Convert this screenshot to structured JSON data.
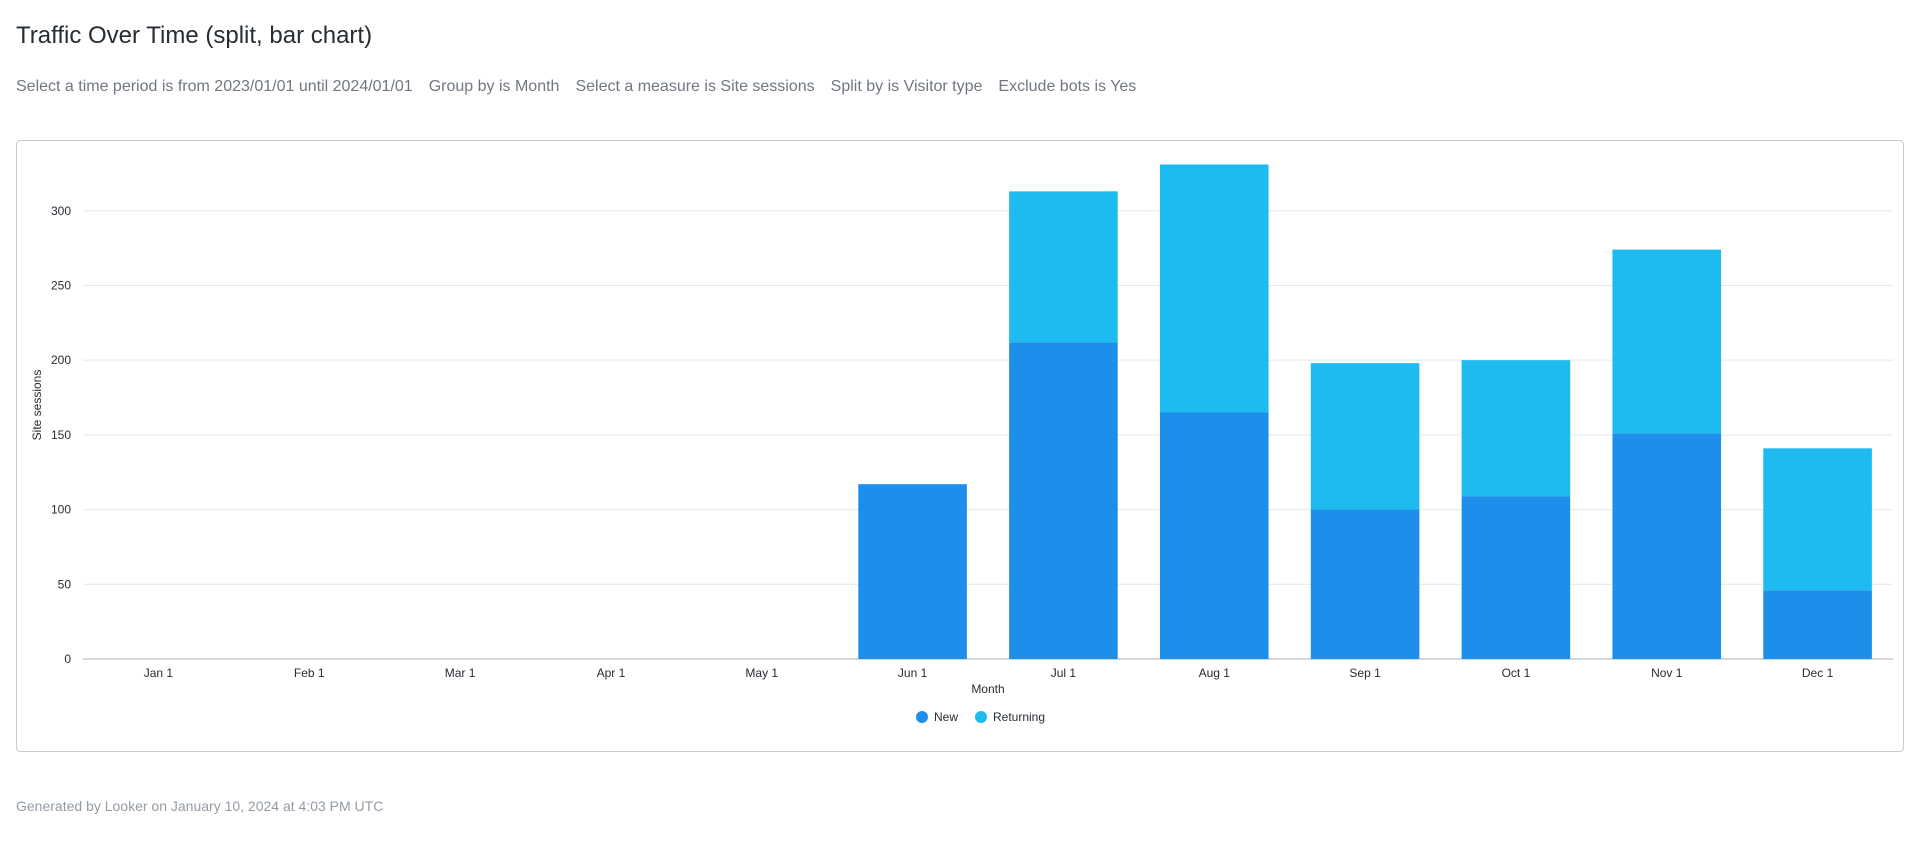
{
  "page": {
    "title": "Traffic Over Time (split, bar chart)",
    "filters": [
      "Select a time period is from 2023/01/01 until 2024/01/01",
      "Group by is Month",
      "Select a measure is Site sessions",
      "Split by is Visitor type",
      "Exclude bots is Yes"
    ],
    "footer": "Generated by Looker on January 10, 2024 at 4:03 PM UTC"
  },
  "chart_data": {
    "type": "bar",
    "stacked": true,
    "categories": [
      "Jan 1",
      "Feb 1",
      "Mar 1",
      "Apr 1",
      "May 1",
      "Jun 1",
      "Jul 1",
      "Aug 1",
      "Sep 1",
      "Oct 1",
      "Nov 1",
      "Dec 1"
    ],
    "series": [
      {
        "name": "New",
        "color": "#1d8fea",
        "values": [
          0,
          0,
          0,
          0,
          0,
          117,
          212,
          165,
          100,
          109,
          151,
          46
        ]
      },
      {
        "name": "Returning",
        "color": "#1dbbf0",
        "values": [
          0,
          0,
          0,
          0,
          0,
          0,
          101,
          166,
          98,
          91,
          123,
          95
        ]
      }
    ],
    "xlabel": "Month",
    "ylabel": "Site sessions",
    "yticks": [
      0,
      50,
      100,
      150,
      200,
      250,
      300
    ],
    "ylim": [
      0,
      340
    ],
    "grid": true,
    "legend": "bottom-center"
  }
}
